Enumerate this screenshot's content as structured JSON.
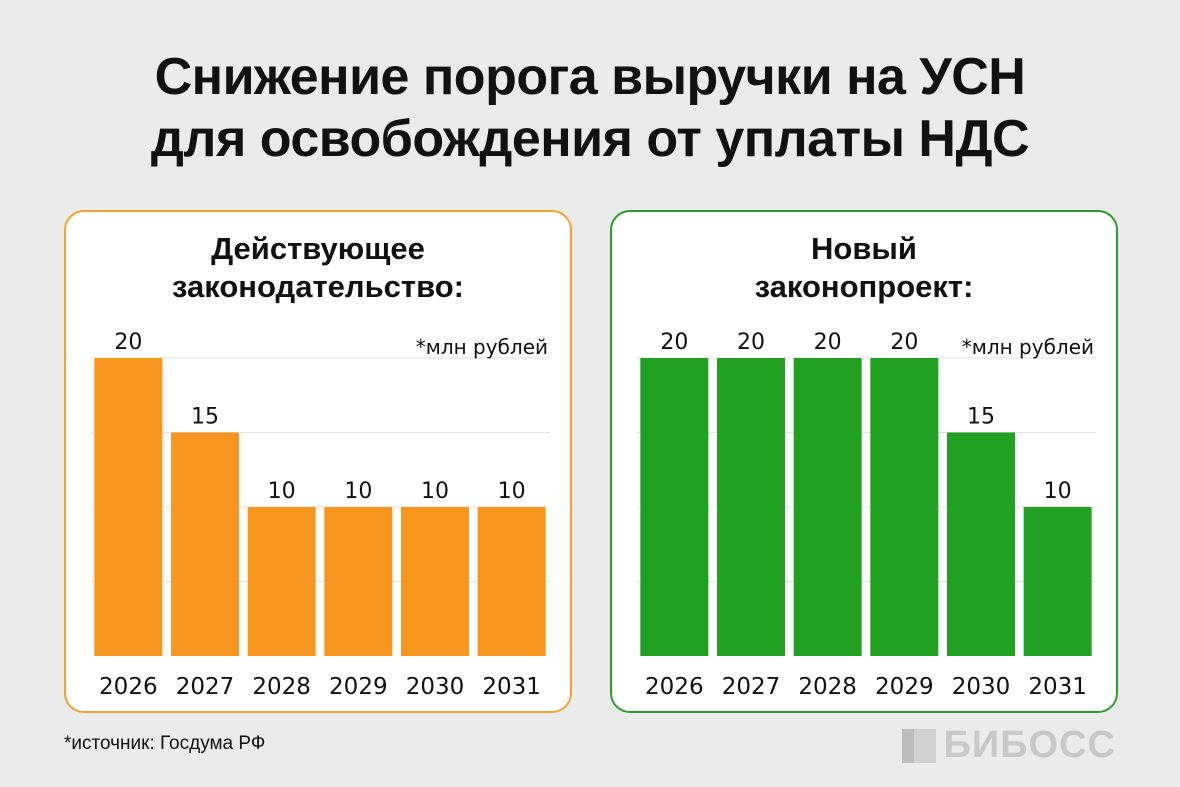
{
  "title": {
    "line1": "Снижение порога выручки на УСН",
    "line2": "для освобождения от уплаты НДС"
  },
  "panels": [
    {
      "title_line1": "Действующее",
      "title_line2": "законодательство:",
      "unit_note": "*млн рублей",
      "accent_color": "#f5a32e",
      "bar_color": "#f7961e"
    },
    {
      "title_line1": "Новый",
      "title_line2": "законопроект:",
      "unit_note": "*млн рублей",
      "accent_color": "#2a9e2a",
      "bar_color": "#22a022"
    }
  ],
  "chart_data": [
    {
      "type": "bar",
      "title": "Действующее законодательство:",
      "categories": [
        "2026",
        "2027",
        "2028",
        "2029",
        "2030",
        "2031"
      ],
      "values": [
        20,
        15,
        10,
        10,
        10,
        10
      ],
      "ylabel": "*млн рублей",
      "ylim": [
        0,
        20
      ],
      "grid": true
    },
    {
      "type": "bar",
      "title": "Новый законопроект:",
      "categories": [
        "2026",
        "2027",
        "2028",
        "2029",
        "2030",
        "2031"
      ],
      "values": [
        20,
        20,
        20,
        20,
        15,
        10
      ],
      "ylabel": "*млн рублей",
      "ylim": [
        0,
        20
      ],
      "grid": true
    }
  ],
  "footer": {
    "source": "*источник: Госдума РФ",
    "logo_text": "БИБОСС",
    "logo_icon": "bboss-logo-icon"
  }
}
